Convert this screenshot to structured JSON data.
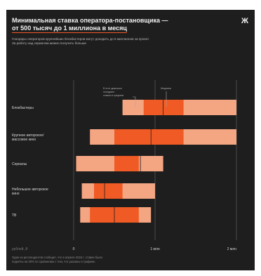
{
  "header": {
    "title_line1": "Минимальная ставка оператора-постановщика —",
    "title_line2": "от 500 тысяч до 1 миллиона в месяц",
    "logo": "Ж",
    "subtitle_line1": "Гонорары операторов крупнейших блокбастеров могут доходить до 6 миллионов за проект.",
    "subtitle_line2": "За работу над сериалом можно получить больше"
  },
  "footnote": {
    "line1": "Один из респондентов сообщил, что в апреле 2024 г. ставки были",
    "line2": "подняты на 30% по сравнению с тем, что указаны в графике."
  },
  "annotations": {
    "left_line1": "В этот диапазон",
    "left_line2": "попадают",
    "left_line3": "ставки в среднем",
    "right": "Медиана"
  },
  "colors": {
    "background": "#1e1e1e",
    "range_light": "#f4a582",
    "range_dark": "#f05a24",
    "median_line": "#1e1e1e",
    "text": "#e8e8e8"
  },
  "chart_data": {
    "type": "bar",
    "orientation": "horizontal-range",
    "xlabel": "рублей, ₽",
    "xlim": [
      0,
      2000000
    ],
    "x_ticks": [
      0,
      1000000,
      2000000
    ],
    "x_tick_labels": [
      "0",
      "1 млн",
      "2 млн"
    ],
    "categories": [
      {
        "label_lines": [
          "Блокбастеры"
        ],
        "min": 600000,
        "core_start": 860000,
        "core_end": 1350000,
        "max": 2000000,
        "median": 1100000
      },
      {
        "label_lines": [
          "Крупное авторское/",
          "массовое кино"
        ],
        "min": 200000,
        "core_start": 500000,
        "core_end": 1350000,
        "max": 2000000,
        "median": 950000
      },
      {
        "label_lines": [
          "Сериалы"
        ],
        "min": 30000,
        "core_start": 500000,
        "core_end": 800000,
        "max": 1100000,
        "median": 820000
      },
      {
        "label_lines": [
          "Небольшое авторское",
          "кино"
        ],
        "min": 100000,
        "core_start": 250000,
        "core_end": 600000,
        "max": 1000000,
        "median": 380000
      },
      {
        "label_lines": [
          "ТВ"
        ],
        "min": 80000,
        "core_start": 200000,
        "core_end": 800000,
        "max": 950000,
        "median": 500000
      }
    ]
  }
}
